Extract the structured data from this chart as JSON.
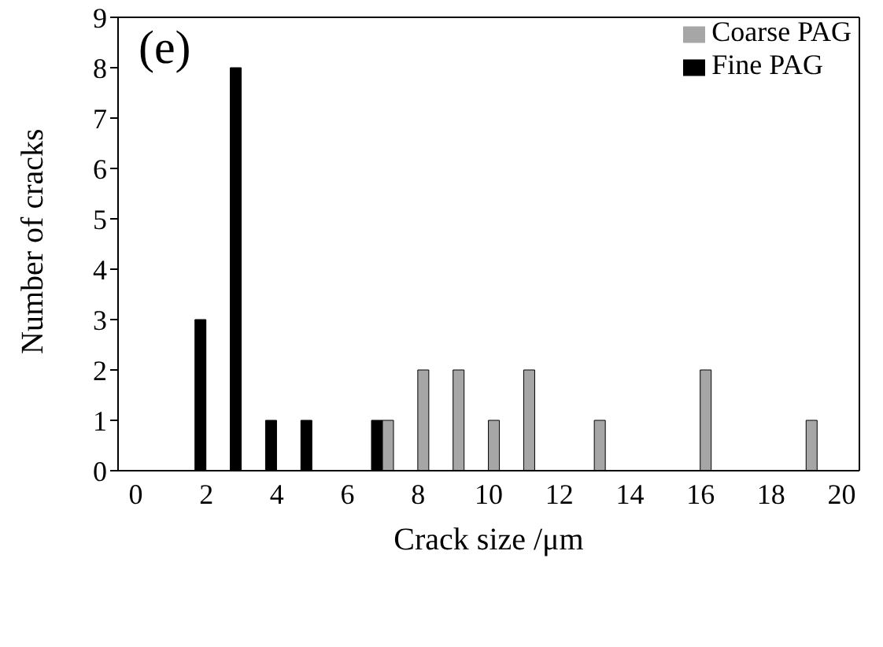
{
  "chart_data": {
    "type": "bar",
    "xlabel": "Crack size /μm",
    "ylabel": "Number of cracks",
    "annotations": [
      "(e)"
    ],
    "categories": [
      "0",
      null,
      "2",
      null,
      "4",
      null,
      "6",
      null,
      "8",
      null,
      "10",
      null,
      "12",
      null,
      "14",
      null,
      "16",
      null,
      "18",
      null,
      "20"
    ],
    "series": [
      {
        "name": "Fine PAG",
        "color": "#000000",
        "values": [
          0,
          0,
          3,
          8,
          1,
          1,
          0,
          1,
          0,
          0,
          0,
          0,
          0,
          0,
          0,
          0,
          0,
          0,
          0,
          0,
          0
        ]
      },
      {
        "name": "Coarse PAG",
        "color": "#a6a6a6",
        "values": [
          0,
          0,
          0,
          0,
          0,
          0,
          0,
          1,
          2,
          2,
          1,
          2,
          0,
          1,
          0,
          0,
          2,
          0,
          0,
          1,
          0
        ]
      }
    ],
    "ylim": [
      0,
      9
    ],
    "yticks": [
      0,
      1,
      2,
      3,
      4,
      5,
      6,
      7,
      8,
      9
    ],
    "grid": false,
    "legend": "top right"
  }
}
